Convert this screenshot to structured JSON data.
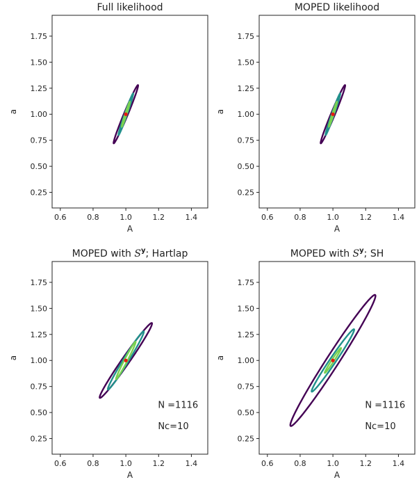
{
  "chart_data": [
    {
      "type": "contour",
      "title": "Full likelihood",
      "xlabel": "A",
      "ylabel": "a",
      "xlim": [
        0.55,
        1.5
      ],
      "ylim": [
        0.1,
        1.95
      ],
      "xticks": [
        "0.6",
        "0.8",
        "1.0",
        "1.2",
        "1.4"
      ],
      "yticks": [
        "0.25",
        "0.50",
        "0.75",
        "1.00",
        "1.25",
        "1.50",
        "1.75"
      ],
      "center": {
        "A": 1.0,
        "a": 1.0
      },
      "contours": [
        {
          "level": 1,
          "color": "#7ad151",
          "half_width_A": 0.025,
          "half_width_a": 0.12
        },
        {
          "level": 2,
          "color": "#21918c",
          "half_width_A": 0.045,
          "half_width_a": 0.2
        },
        {
          "level": 3,
          "color": "#440154",
          "half_width_A": 0.075,
          "half_width_a": 0.28
        }
      ],
      "annotations": []
    },
    {
      "type": "contour",
      "title": "MOPED likelihood",
      "xlabel": "A",
      "ylabel": "a",
      "xlim": [
        0.55,
        1.5
      ],
      "ylim": [
        0.1,
        1.95
      ],
      "xticks": [
        "0.6",
        "0.8",
        "1.0",
        "1.2",
        "1.4"
      ],
      "yticks": [
        "0.25",
        "0.50",
        "0.75",
        "1.00",
        "1.25",
        "1.50",
        "1.75"
      ],
      "center": {
        "A": 1.0,
        "a": 1.0
      },
      "contours": [
        {
          "level": 1,
          "color": "#7ad151",
          "half_width_A": 0.025,
          "half_width_a": 0.12
        },
        {
          "level": 2,
          "color": "#21918c",
          "half_width_A": 0.045,
          "half_width_a": 0.2
        },
        {
          "level": 3,
          "color": "#440154",
          "half_width_A": 0.075,
          "half_width_a": 0.28
        }
      ],
      "annotations": []
    },
    {
      "type": "contour",
      "title_prefix": "MOPED with ",
      "title_symbol": "S",
      "title_superscript": "y",
      "title_suffix": "; Hartlap",
      "xlabel": "A",
      "ylabel": "a",
      "xlim": [
        0.55,
        1.5
      ],
      "ylim": [
        0.1,
        1.95
      ],
      "xticks": [
        "0.6",
        "0.8",
        "1.0",
        "1.2",
        "1.4"
      ],
      "yticks": [
        "0.25",
        "0.50",
        "0.75",
        "1.00",
        "1.25",
        "1.50",
        "1.75"
      ],
      "center": {
        "A": 1.0,
        "a": 1.0
      },
      "contours": [
        {
          "level": 1,
          "color": "#7ad151",
          "half_width_A": 0.06,
          "half_width_a": 0.18
        },
        {
          "level": 2,
          "color": "#21918c",
          "half_width_A": 0.11,
          "half_width_a": 0.28
        },
        {
          "level": 3,
          "color": "#440154",
          "half_width_A": 0.16,
          "half_width_a": 0.36
        }
      ],
      "annotations": [
        "N =1116",
        "Nc=10"
      ]
    },
    {
      "type": "contour",
      "title_prefix": "MOPED with ",
      "title_symbol": "S",
      "title_superscript": "y",
      "title_suffix": "; SH",
      "xlabel": "A",
      "ylabel": "a",
      "xlim": [
        0.55,
        1.5
      ],
      "ylim": [
        0.1,
        1.95
      ],
      "xticks": [
        "0.6",
        "0.8",
        "1.0",
        "1.2",
        "1.4"
      ],
      "yticks": [
        "0.25",
        "0.50",
        "0.75",
        "1.00",
        "1.25",
        "1.50",
        "1.75"
      ],
      "center": {
        "A": 1.0,
        "a": 1.0
      },
      "contours": [
        {
          "level": 1,
          "color": "#7ad151",
          "half_width_A": 0.05,
          "half_width_a": 0.12
        },
        {
          "level": 2,
          "color": "#21918c",
          "half_width_A": 0.13,
          "half_width_a": 0.3
        },
        {
          "level": 3,
          "color": "#440154",
          "half_width_A": 0.26,
          "half_width_a": 0.63
        }
      ],
      "annotations": [
        "N =1116",
        "Nc=10"
      ]
    }
  ],
  "center_marker_color": "#e8190f"
}
